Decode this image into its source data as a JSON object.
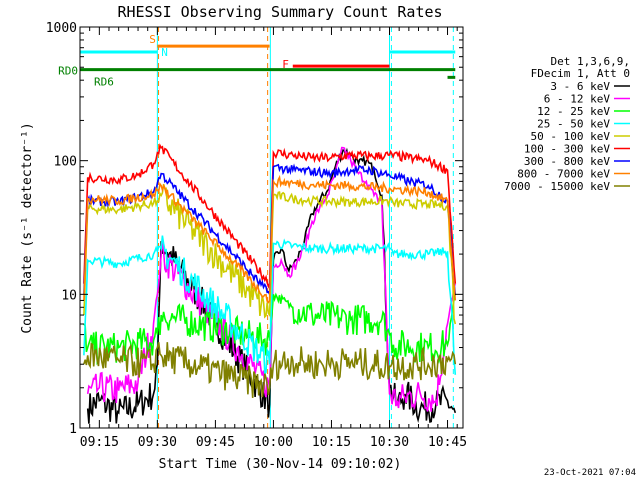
{
  "chart_data": {
    "type": "line",
    "title": "RHESSI Observing Summary Count Rates",
    "xlabel": "Start Time (30-Nov-14 09:10:02)",
    "ylabel": "Count Rate (s⁻¹ detector⁻¹)",
    "y_scale": "log",
    "ylim": [
      1,
      1000
    ],
    "xlim_minutes": [
      0,
      99
    ],
    "x_ticks": [
      {
        "min": 5,
        "label": "09:15"
      },
      {
        "min": 20,
        "label": "09:30"
      },
      {
        "min": 35,
        "label": "09:45"
      },
      {
        "min": 50,
        "label": "10:00"
      },
      {
        "min": 65,
        "label": "10:15"
      },
      {
        "min": 80,
        "label": "10:30"
      },
      {
        "min": 95,
        "label": "10:45"
      }
    ],
    "y_ticks": [
      {
        "value": 1,
        "label": "1"
      },
      {
        "value": 10,
        "label": "10"
      },
      {
        "value": 100,
        "label": "100"
      },
      {
        "value": 1000,
        "label": "1000"
      }
    ],
    "legend_position": "right",
    "legend_header": [
      "Det 1,3,6,9,",
      "FDecim 1, Att 0"
    ],
    "series": [
      {
        "name": "3 - 6 keV",
        "color": "#000000",
        "x": [
          2,
          5,
          10,
          15,
          19,
          20,
          21,
          49,
          50,
          52,
          54,
          56,
          58,
          60,
          62,
          64,
          66,
          68,
          70,
          72,
          74,
          76,
          78,
          80,
          82,
          84,
          88,
          92,
          95,
          97
        ],
        "values": [
          1.4,
          1.6,
          1.3,
          1.5,
          1.8,
          3.0,
          25,
          1.5,
          18,
          22,
          15,
          18,
          25,
          40,
          50,
          60,
          90,
          120,
          110,
          95,
          100,
          85,
          55,
          2.0,
          1.5,
          1.8,
          1.4,
          1.5,
          1.6,
          1.3
        ]
      },
      {
        "name": "6 - 12 keV",
        "color": "#ff00ff",
        "x": [
          2,
          5,
          10,
          15,
          19,
          20,
          21,
          49,
          50,
          52,
          54,
          56,
          58,
          60,
          62,
          64,
          66,
          68,
          70,
          72,
          74,
          76,
          78,
          80,
          82,
          84,
          88,
          92,
          95,
          97
        ],
        "values": [
          1.8,
          2.0,
          1.9,
          2.2,
          6.0,
          10,
          20,
          2.0,
          16,
          18,
          14,
          17,
          22,
          35,
          45,
          55,
          80,
          125,
          100,
          80,
          70,
          55,
          50,
          1.8,
          1.6,
          1.7,
          1.8,
          1.6,
          6.0,
          12
        ]
      },
      {
        "name": "12 - 25 keV",
        "color": "#00ff00",
        "x": [
          1,
          2,
          10,
          19,
          20,
          21,
          49,
          50,
          55,
          60,
          70,
          78,
          80,
          81,
          90,
          95,
          97
        ],
        "values": [
          6.0,
          4.0,
          4.0,
          4.5,
          5.0,
          7.0,
          4.5,
          10,
          8.0,
          7.0,
          6.5,
          6.5,
          5.0,
          4.2,
          4.0,
          4.2,
          10
        ]
      },
      {
        "name": "25 - 50 keV",
        "color": "#00ffff",
        "x": [
          1,
          2,
          10,
          19,
          20,
          21,
          49,
          50,
          55,
          60,
          70,
          80,
          81,
          90,
          95,
          97
        ],
        "values": [
          3.5,
          18,
          17,
          20,
          21,
          22,
          3.0,
          24,
          23,
          22,
          22,
          22,
          20,
          20,
          21,
          2.5
        ]
      },
      {
        "name": "50 - 100 keV",
        "color": "#cccc00",
        "x": [
          1,
          2,
          10,
          19,
          20,
          21,
          49,
          50,
          55,
          60,
          70,
          80,
          81,
          90,
          95,
          97
        ],
        "values": [
          7.0,
          44,
          43,
          48,
          50,
          55,
          7.0,
          55,
          52,
          50,
          49,
          50,
          48,
          47,
          46,
          6.0
        ]
      },
      {
        "name": "100 - 300 keV",
        "color": "#ff0000",
        "x": [
          1,
          2,
          10,
          15,
          19,
          20,
          21,
          49,
          50,
          55,
          60,
          65,
          70,
          75,
          80,
          85,
          90,
          95,
          97
        ],
        "values": [
          12,
          75,
          72,
          78,
          95,
          115,
          125,
          12,
          115,
          110,
          105,
          105,
          110,
          108,
          110,
          105,
          100,
          85,
          12
        ]
      },
      {
        "name": "300 - 800 keV",
        "color": "#0000ff",
        "x": [
          1,
          2,
          10,
          19,
          20,
          21,
          49,
          50,
          55,
          60,
          65,
          70,
          75,
          80,
          85,
          90,
          95,
          97
        ],
        "values": [
          10,
          50,
          49,
          58,
          68,
          80,
          10,
          90,
          85,
          83,
          80,
          85,
          85,
          78,
          70,
          65,
          50,
          10
        ]
      },
      {
        "name": "800 - 7000 keV",
        "color": "#ff8000",
        "x": [
          1,
          2,
          10,
          19,
          20,
          21,
          49,
          50,
          55,
          60,
          70,
          80,
          90,
          95,
          97
        ],
        "values": [
          9.0,
          52,
          50,
          56,
          60,
          65,
          9.0,
          70,
          68,
          66,
          65,
          62,
          58,
          50,
          9.0
        ]
      },
      {
        "name": "7000 - 15000 keV",
        "color": "#808000",
        "x": [
          1,
          2,
          10,
          19,
          20,
          21,
          49,
          50,
          55,
          60,
          70,
          80,
          90,
          95,
          97
        ],
        "values": [
          3.0,
          3.5,
          3.2,
          3.0,
          4.0,
          3.5,
          2.0,
          3.0,
          3.2,
          3.0,
          3.1,
          2.9,
          3.0,
          3.2,
          3.0
        ]
      }
    ],
    "annotations": [
      {
        "text": "S",
        "color": "#ff8000"
      },
      {
        "text": "N",
        "color": "#00ffff"
      },
      {
        "text": "F",
        "color": "#ff0000"
      },
      {
        "text": "RD0",
        "color": "#008000"
      },
      {
        "text": "RD6",
        "color": "#008000"
      }
    ],
    "state_bars": [
      {
        "label": "S",
        "color": "#ff8000",
        "x": [
          20,
          49
        ],
        "y": 720
      },
      {
        "label": "N",
        "color": "#00ffff",
        "x": [
          0,
          20
        ],
        "y": 650
      },
      {
        "label": "N",
        "color": "#00ffff",
        "x": [
          80,
          97
        ],
        "y": 650
      },
      {
        "label": "F",
        "color": "#ff0000",
        "x": [
          55,
          80
        ],
        "y": 510
      },
      {
        "label": "RD0",
        "color": "#008000",
        "x": [
          0,
          97
        ],
        "y": 480
      },
      {
        "label": "RD6",
        "color": "#008000",
        "x": [
          95,
          97
        ],
        "y": 420
      }
    ],
    "vlines": [
      {
        "x": 0,
        "color": "#00ffff",
        "dash": false
      },
      {
        "x": 20,
        "color": "#00ffff",
        "dash": false
      },
      {
        "x": 20.3,
        "color": "#ff8000",
        "dash": true
      },
      {
        "x": 48.5,
        "color": "#ff8000",
        "dash": true
      },
      {
        "x": 49.2,
        "color": "#00ffff",
        "dash": false
      },
      {
        "x": 80,
        "color": "#00ffff",
        "dash": false
      },
      {
        "x": 80.5,
        "color": "#00ffff",
        "dash": true
      },
      {
        "x": 96.5,
        "color": "#00ffff",
        "dash": true
      }
    ],
    "grid": false
  },
  "footer": {
    "timestamp": "23-Oct-2021 07:04"
  }
}
